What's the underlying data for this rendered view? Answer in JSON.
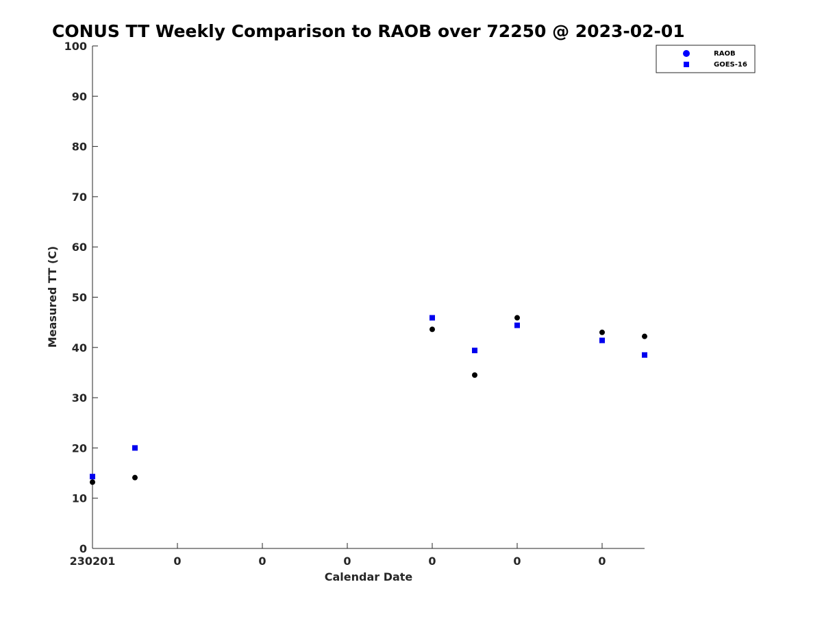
{
  "chart_data": {
    "type": "scatter",
    "title": "CONUS TT Weekly Comparison to RAOB over 72250 @ 2023-02-01",
    "xlabel": "Calendar Date",
    "ylabel": "Measured TT (C)",
    "xlim": [
      0,
      6.5
    ],
    "ylim": [
      0,
      100
    ],
    "y_ticks": [
      0,
      10,
      20,
      30,
      40,
      50,
      60,
      70,
      80,
      90,
      100
    ],
    "x_ticks": [
      0,
      1,
      2,
      3,
      4,
      5,
      6
    ],
    "x_tick_labels": [
      "230201",
      "0",
      "0",
      "0",
      "0",
      "0",
      "0"
    ],
    "grid": false,
    "legend_position": "top-right",
    "series": [
      {
        "name": "RAOB",
        "marker": "circle",
        "color": "#000000",
        "legend_color": "#0000ff",
        "points": [
          {
            "x": 0.0,
            "y": 13.2
          },
          {
            "x": 0.5,
            "y": 14.1
          },
          {
            "x": 4.0,
            "y": 43.6
          },
          {
            "x": 4.5,
            "y": 34.5
          },
          {
            "x": 5.0,
            "y": 45.9
          },
          {
            "x": 6.0,
            "y": 43.0
          },
          {
            "x": 6.5,
            "y": 42.2
          }
        ]
      },
      {
        "name": "GOES-16",
        "marker": "square",
        "color": "#0000ee",
        "legend_color": "#0000ff",
        "points": [
          {
            "x": 0.0,
            "y": 14.3
          },
          {
            "x": 0.5,
            "y": 20.0
          },
          {
            "x": 4.0,
            "y": 45.9
          },
          {
            "x": 4.5,
            "y": 39.4
          },
          {
            "x": 5.0,
            "y": 44.4
          },
          {
            "x": 6.0,
            "y": 41.4
          },
          {
            "x": 6.5,
            "y": 38.5
          }
        ]
      }
    ]
  }
}
